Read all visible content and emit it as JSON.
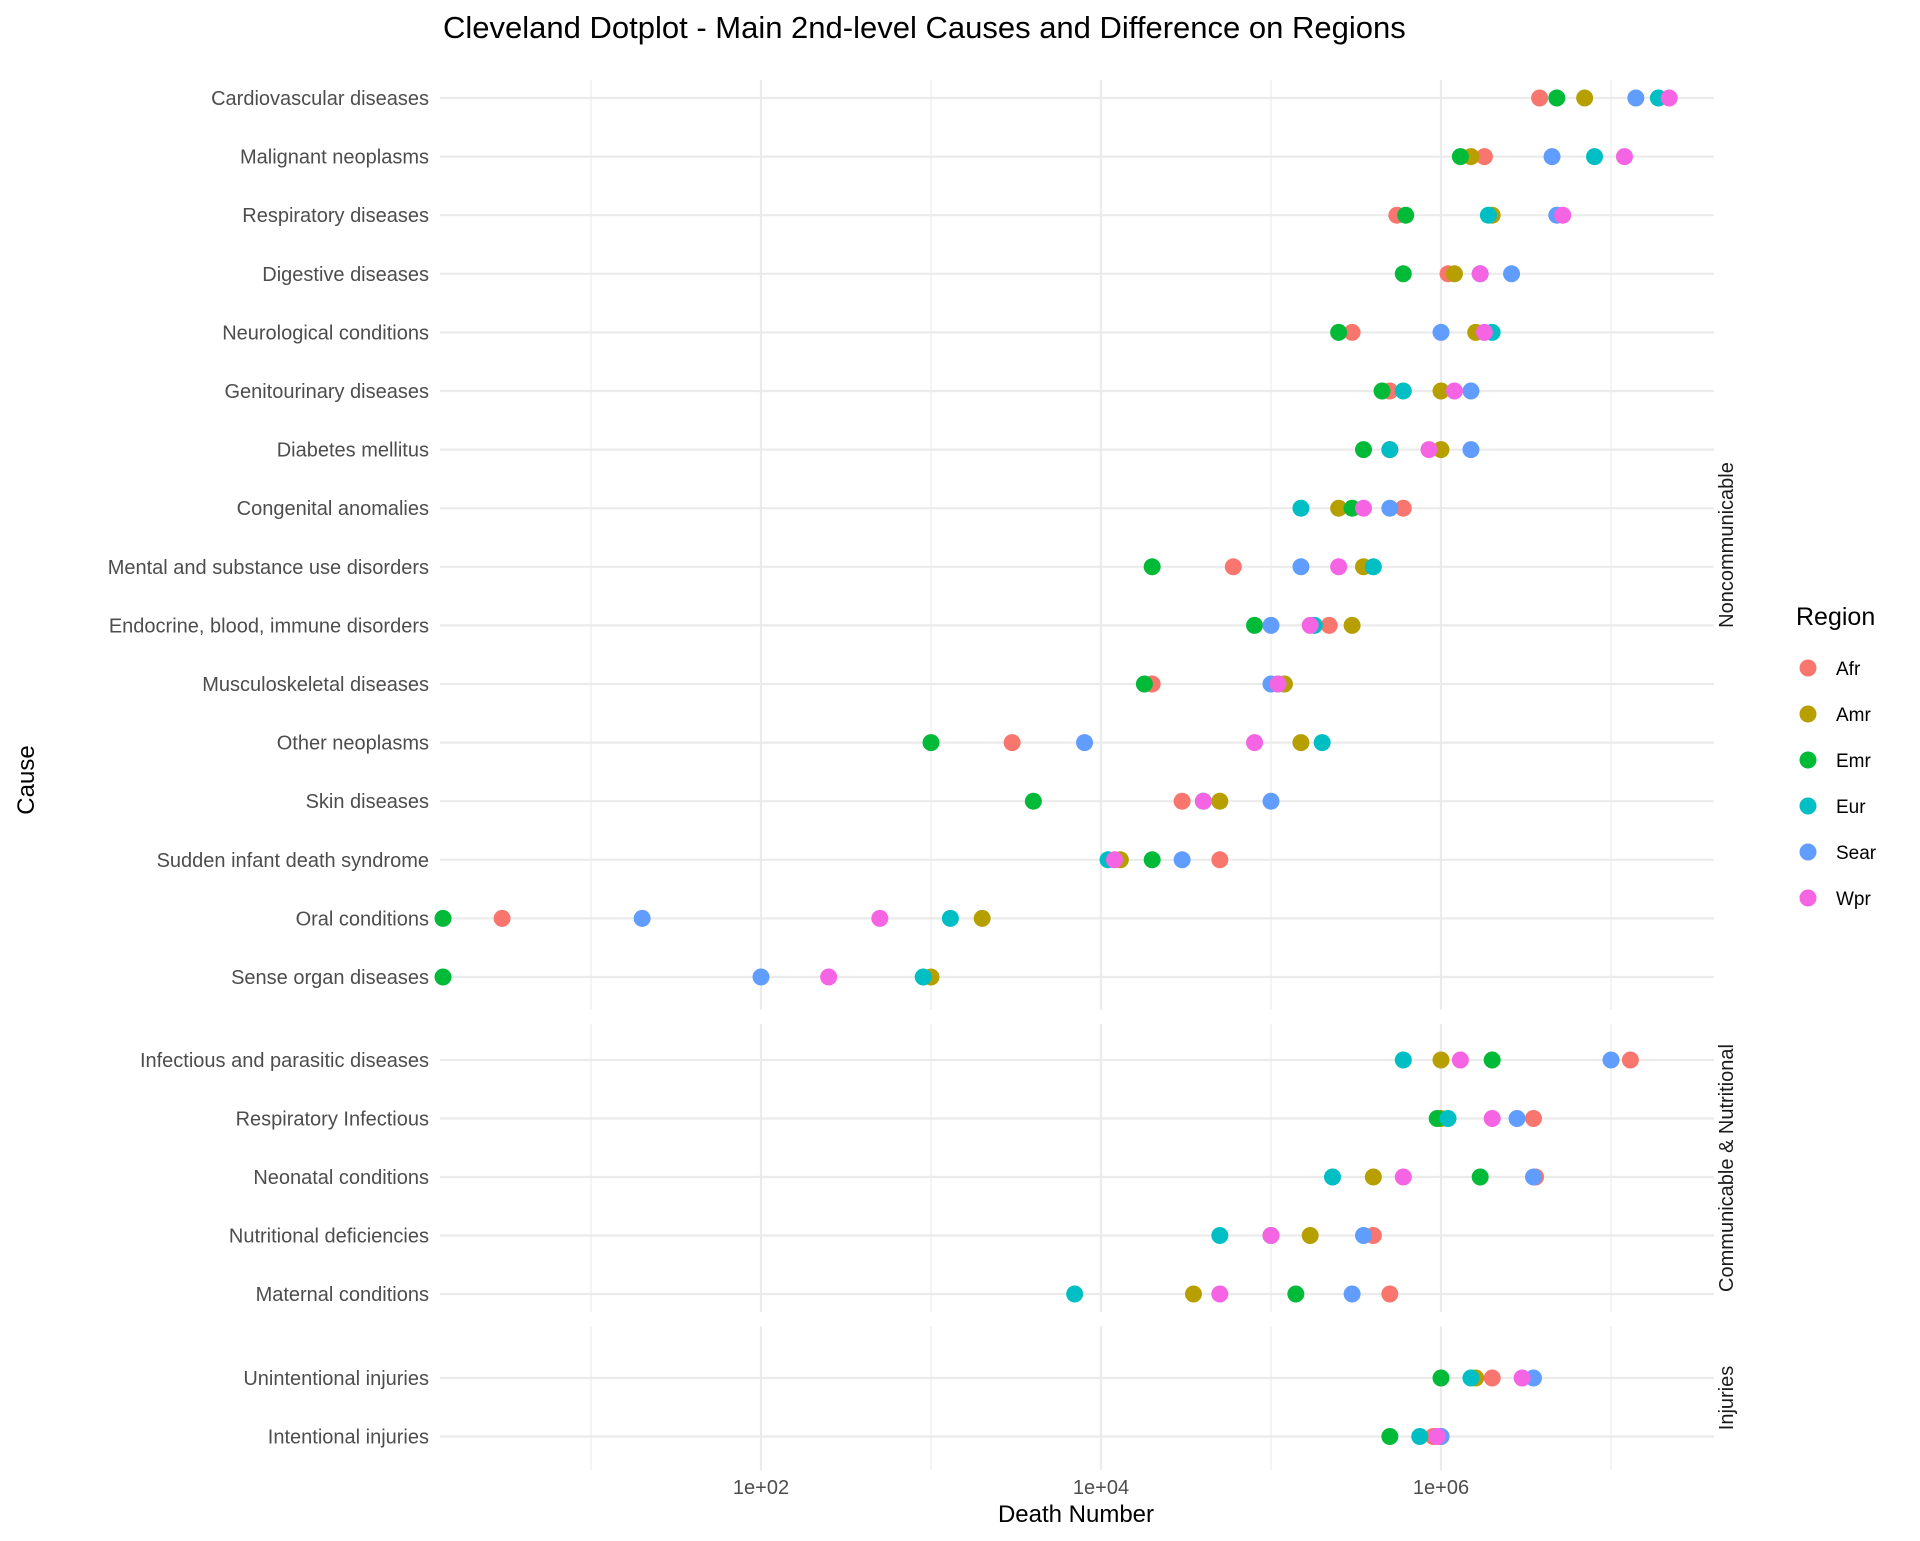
{
  "chart_data": {
    "type": "scatter",
    "title": "Cleveland Dotplot - Main 2nd-level Causes and Difference on Regions",
    "xlabel": "Death Number",
    "ylabel": "Cause",
    "x_scale": "log10",
    "xlim": [
      0.35,
      40000000
    ],
    "x_ticks": [
      1,
      10,
      100,
      1000,
      10000,
      100000,
      1000000,
      10000000
    ],
    "x_tick_labels": [
      {
        "value": 100,
        "label": "1e+02"
      },
      {
        "value": 10000,
        "label": "1e+04"
      },
      {
        "value": 1000000,
        "label": "1e+06"
      }
    ],
    "grid": true,
    "legend": {
      "title": "Region",
      "position": "right",
      "items": [
        {
          "name": "Afr",
          "color": "#F8766D"
        },
        {
          "name": "Amr",
          "color": "#B79F00"
        },
        {
          "name": "Emr",
          "color": "#00BA38"
        },
        {
          "name": "Eur",
          "color": "#00BFC4"
        },
        {
          "name": "Sear",
          "color": "#619CFF"
        },
        {
          "name": "Wpr",
          "color": "#F564E3"
        }
      ]
    },
    "facets": [
      {
        "label": "Noncommunicable",
        "causes": [
          {
            "cause": "Cardiovascular diseases",
            "Afr": 3800000,
            "Amr": 7000000,
            "Emr": 4800000,
            "Eur": 19000000,
            "Sear": 14000000,
            "Wpr": 22000000
          },
          {
            "cause": "Malignant neoplasms",
            "Afr": 1800000,
            "Amr": 1500000,
            "Emr": 1300000,
            "Eur": 8000000,
            "Sear": 4500000,
            "Wpr": 12000000
          },
          {
            "cause": "Respiratory diseases",
            "Afr": 550000,
            "Amr": 2000000,
            "Emr": 620000,
            "Eur": 1900000,
            "Sear": 4800000,
            "Wpr": 5200000
          },
          {
            "cause": "Digestive diseases",
            "Afr": 1100000,
            "Amr": 1200000,
            "Emr": 600000,
            "Eur": 1700000,
            "Sear": 2600000,
            "Wpr": 1700000
          },
          {
            "cause": "Neurological conditions",
            "Afr": 300000,
            "Amr": 1600000,
            "Emr": 250000,
            "Eur": 2000000,
            "Sear": 1000000,
            "Wpr": 1800000
          },
          {
            "cause": "Genitourinary diseases",
            "Afr": 500000,
            "Amr": 1000000,
            "Emr": 450000,
            "Eur": 600000,
            "Sear": 1500000,
            "Wpr": 1200000
          },
          {
            "cause": "Diabetes mellitus",
            "Afr": 500000,
            "Amr": 1000000,
            "Emr": 350000,
            "Eur": 500000,
            "Sear": 1500000,
            "Wpr": 850000
          },
          {
            "cause": "Congenital anomalies",
            "Afr": 600000,
            "Amr": 250000,
            "Emr": 300000,
            "Eur": 150000,
            "Sear": 500000,
            "Wpr": 350000
          },
          {
            "cause": "Mental and substance use disorders",
            "Afr": 60000,
            "Amr": 350000,
            "Emr": 20000,
            "Eur": 400000,
            "Sear": 150000,
            "Wpr": 250000
          },
          {
            "cause": "Endocrine, blood, immune disorders",
            "Afr": 220000,
            "Amr": 300000,
            "Emr": 80000,
            "Eur": 180000,
            "Sear": 100000,
            "Wpr": 170000
          },
          {
            "cause": "Musculoskeletal diseases",
            "Afr": 20000,
            "Amr": 120000,
            "Emr": 18000,
            "Eur": 110000,
            "Sear": 100000,
            "Wpr": 110000
          },
          {
            "cause": "Other neoplasms",
            "Afr": 3000,
            "Amr": 150000,
            "Emr": 1000,
            "Eur": 200000,
            "Sear": 8000,
            "Wpr": 80000
          },
          {
            "cause": "Skin diseases",
            "Afr": 30000,
            "Amr": 50000,
            "Emr": 4000,
            "Eur": 40000,
            "Sear": 100000,
            "Wpr": 40000
          },
          {
            "cause": "Sudden infant death syndrome",
            "Afr": 50000,
            "Amr": 13000,
            "Emr": 20000,
            "Eur": 11000,
            "Sear": 30000,
            "Wpr": 12000
          },
          {
            "cause": "Oral conditions",
            "Afr": 3,
            "Amr": 2000,
            "Emr": 0.35,
            "Eur": 1300,
            "Sear": 20,
            "Wpr": 500
          },
          {
            "cause": "Sense organ diseases",
            "Afr": null,
            "Amr": 1000,
            "Emr": 0.35,
            "Eur": 900,
            "Sear": 100,
            "Wpr": 250
          }
        ]
      },
      {
        "label": "Communicable & Nutritional",
        "causes": [
          {
            "cause": "Infectious and parasitic diseases",
            "Afr": 13000000,
            "Amr": 1000000,
            "Emr": 2000000,
            "Eur": 600000,
            "Sear": 10000000,
            "Wpr": 1300000
          },
          {
            "cause": "Respiratory Infectious",
            "Afr": 3500000,
            "Amr": 1000000,
            "Emr": 950000,
            "Eur": 1100000,
            "Sear": 2800000,
            "Wpr": 2000000
          },
          {
            "cause": "Neonatal conditions",
            "Afr": 3600000,
            "Amr": 400000,
            "Emr": 1700000,
            "Eur": 230000,
            "Sear": 3500000,
            "Wpr": 600000
          },
          {
            "cause": "Nutritional deficiencies",
            "Afr": 400000,
            "Amr": 170000,
            "Emr": 100000,
            "Eur": 50000,
            "Sear": 350000,
            "Wpr": 100000
          },
          {
            "cause": "Maternal conditions",
            "Afr": 500000,
            "Amr": 35000,
            "Emr": 140000,
            "Eur": 7000,
            "Sear": 300000,
            "Wpr": 50000
          }
        ]
      },
      {
        "label": "Injuries",
        "causes": [
          {
            "cause": "Unintentional injuries",
            "Afr": 2000000,
            "Amr": 1600000,
            "Emr": 1000000,
            "Eur": 1500000,
            "Sear": 3500000,
            "Wpr": 3000000
          },
          {
            "cause": "Intentional injuries",
            "Afr": 900000,
            "Amr": 1000000,
            "Emr": 500000,
            "Eur": 750000,
            "Sear": 1000000,
            "Wpr": 950000
          }
        ]
      }
    ]
  }
}
